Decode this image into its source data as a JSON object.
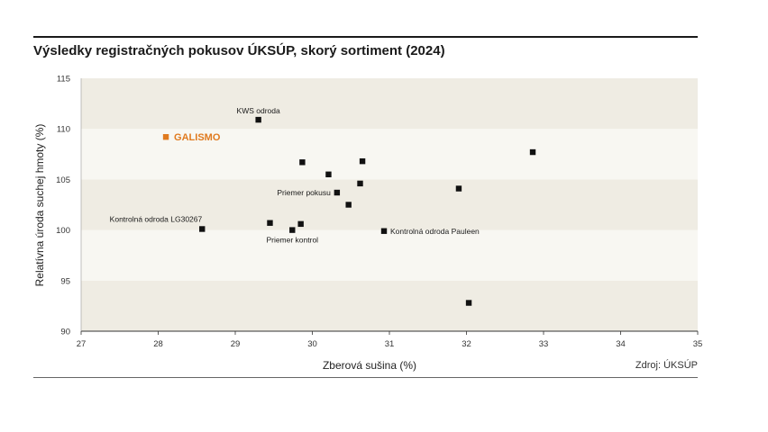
{
  "chart_data": {
    "type": "scatter",
    "title": "Výsledky registračných pokusov ÚKSÚP, skorý sortiment (2024)",
    "xlabel": "Zberová sušina (%)",
    "ylabel": "Relatívna úroda suchej hmoty  (%)",
    "source": "Zdroj: ÚKSÚP",
    "xlim": [
      27,
      35
    ],
    "ylim": [
      90,
      115
    ],
    "xticks": [
      "27",
      "28",
      "29",
      "30",
      "31",
      "32",
      "33",
      "34",
      "35"
    ],
    "yticks": [
      "90",
      "95",
      "100",
      "105",
      "110",
      "115"
    ],
    "highlight_color": "#e07a1f",
    "band_color": "#efece3",
    "points": [
      {
        "x": 28.1,
        "y": 109.2,
        "label": "GALISMO",
        "highlight": true,
        "label_pos": "right"
      },
      {
        "x": 29.3,
        "y": 110.9,
        "label": "KWS odroda",
        "label_pos": "top"
      },
      {
        "x": 28.57,
        "y": 100.1,
        "label": "Kontrolná odroda LG30267",
        "label_pos": "left-top"
      },
      {
        "x": 30.93,
        "y": 99.9,
        "label": "Kontrolná odroda Pauleen",
        "label_pos": "right"
      },
      {
        "x": 30.32,
        "y": 103.7,
        "label": "Priemer pokusu",
        "label_pos": "left"
      },
      {
        "x": 29.74,
        "y": 100.0,
        "label": "Priemer kontrol",
        "label_pos": "bottom"
      },
      {
        "x": 29.87,
        "y": 106.7,
        "label": ""
      },
      {
        "x": 30.21,
        "y": 105.5,
        "label": ""
      },
      {
        "x": 30.65,
        "y": 106.8,
        "label": ""
      },
      {
        "x": 30.62,
        "y": 104.6,
        "label": ""
      },
      {
        "x": 30.47,
        "y": 102.5,
        "label": ""
      },
      {
        "x": 29.45,
        "y": 100.7,
        "label": ""
      },
      {
        "x": 29.85,
        "y": 100.6,
        "label": ""
      },
      {
        "x": 31.9,
        "y": 104.1,
        "label": ""
      },
      {
        "x": 32.86,
        "y": 107.7,
        "label": ""
      },
      {
        "x": 32.03,
        "y": 92.8,
        "label": ""
      }
    ]
  }
}
